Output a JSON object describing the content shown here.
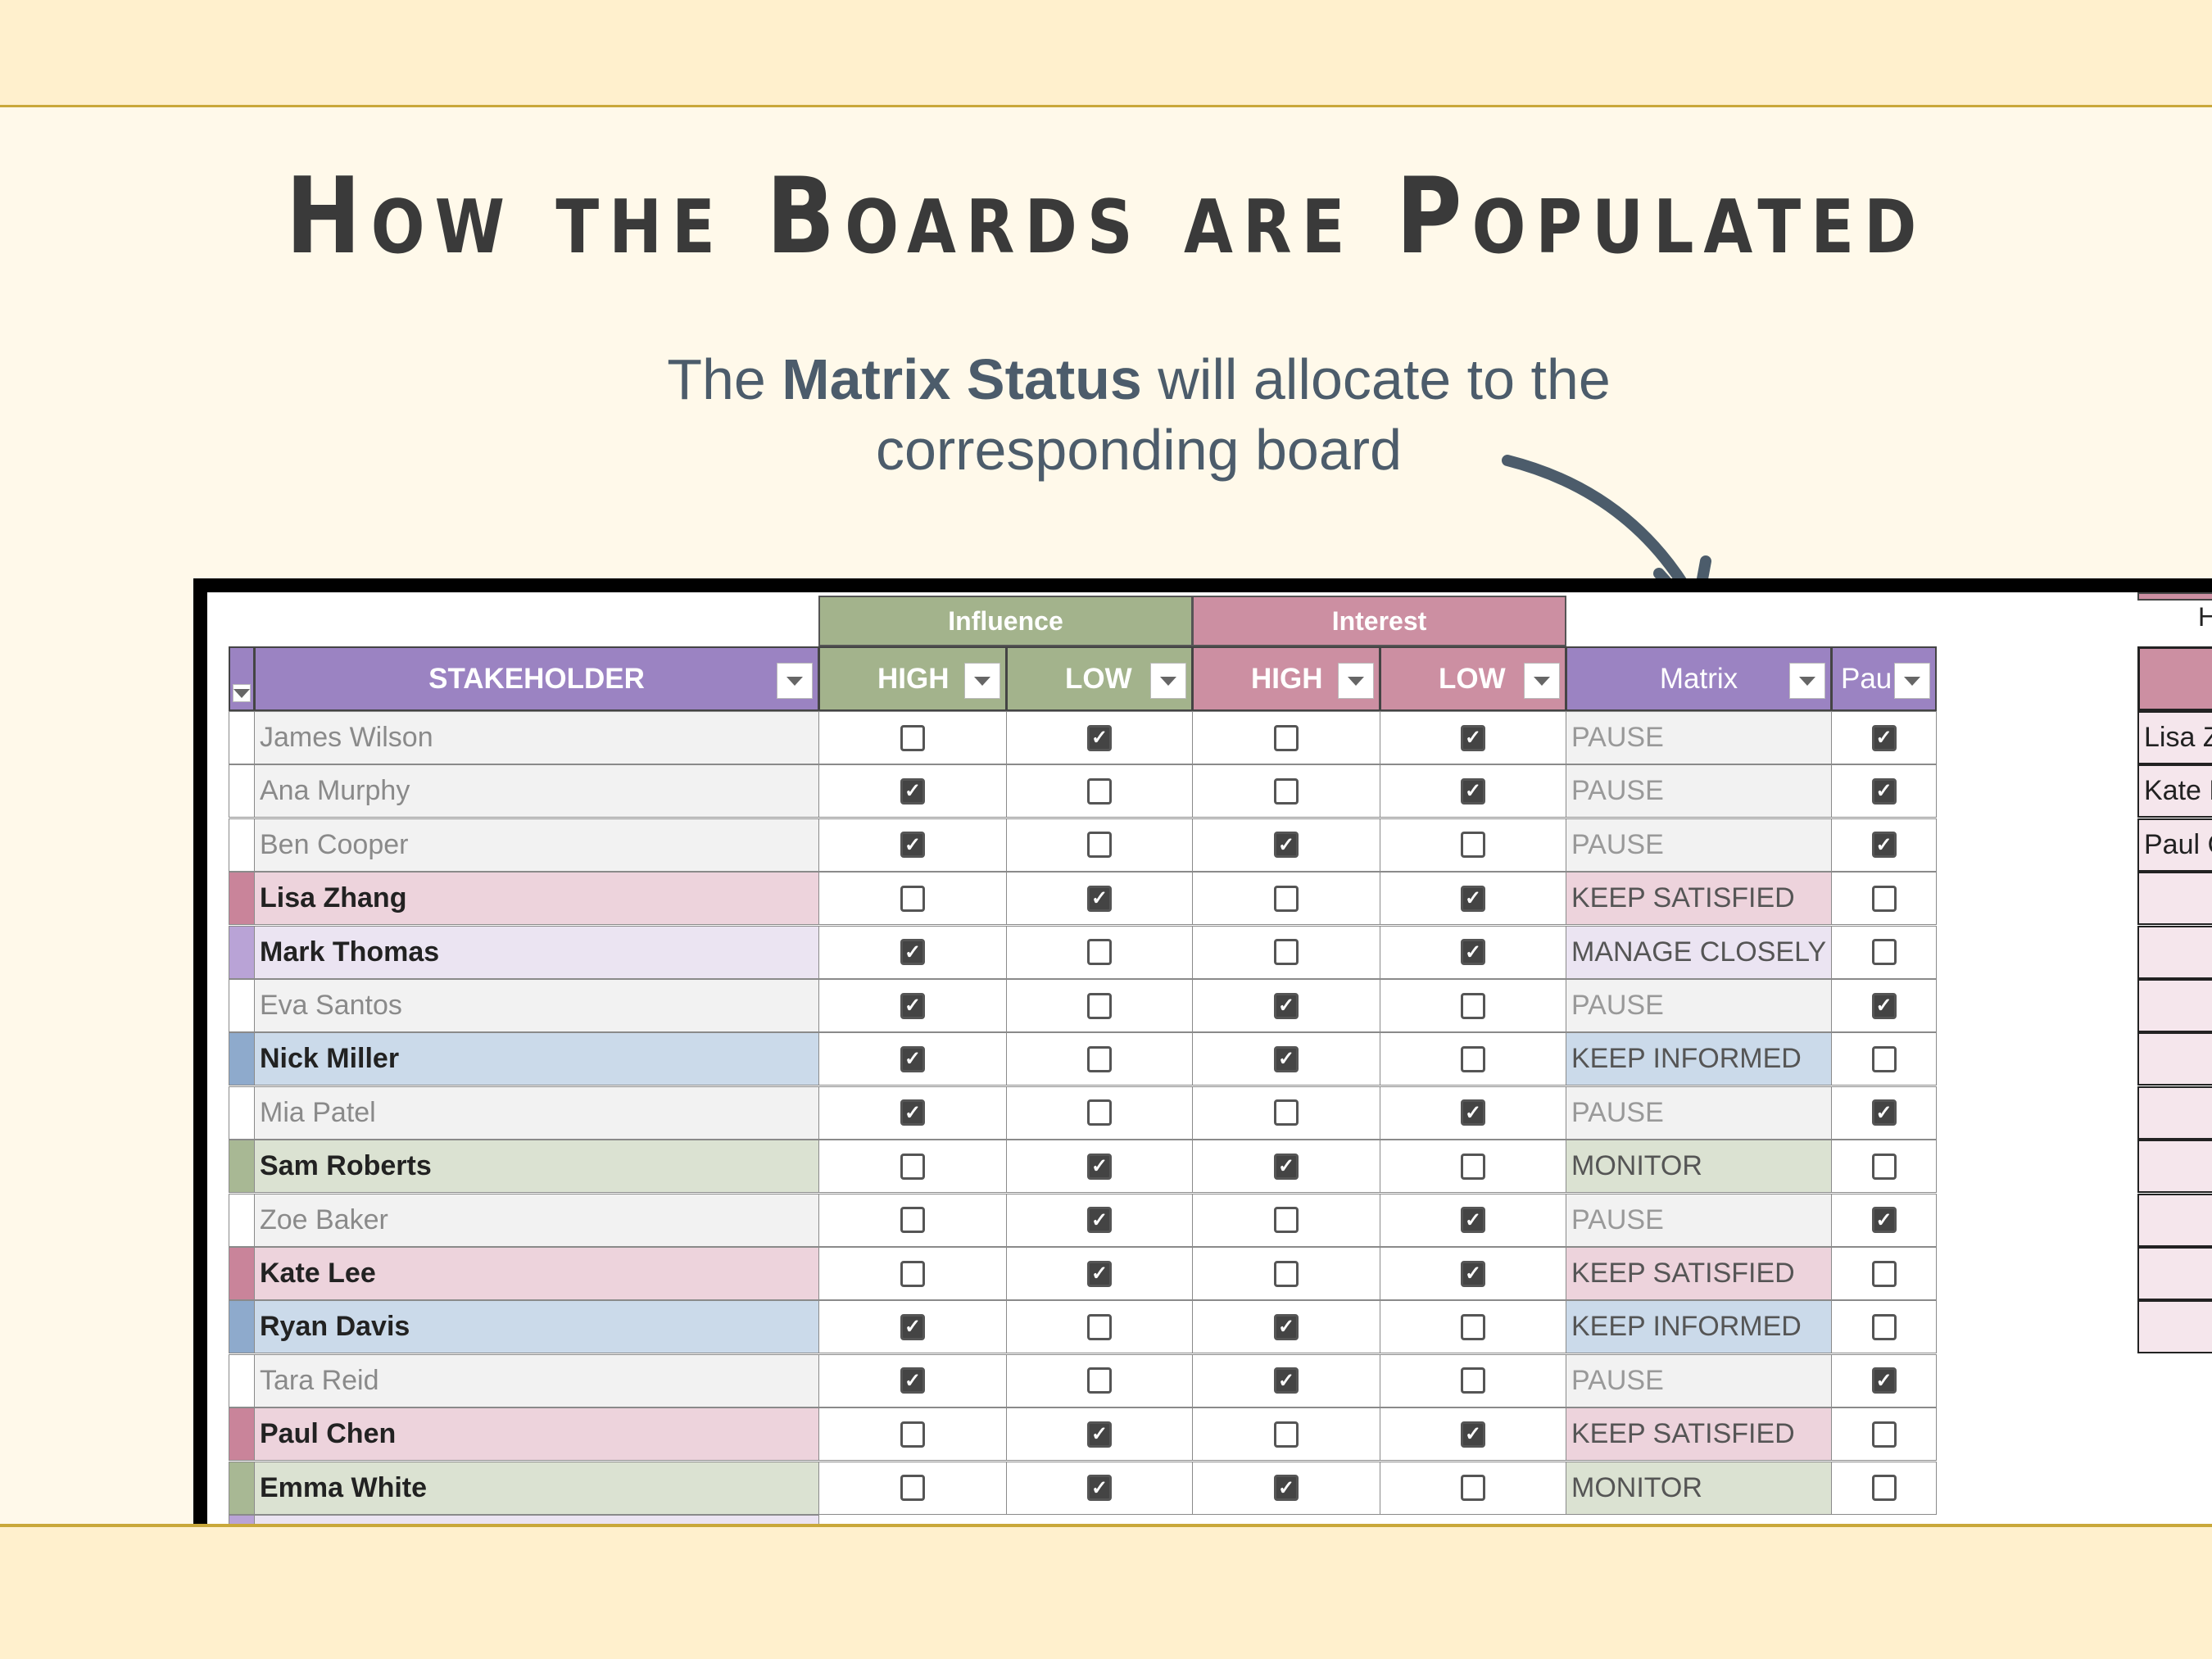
{
  "title": "How the Boards are Populated",
  "subtitle": {
    "pre": "The ",
    "bold": "Matrix Status",
    "post": " will allocate to the",
    "line2": "corresponding board"
  },
  "table": {
    "groups": {
      "influence": "Influence",
      "interest": "Interest"
    },
    "headers": {
      "stakeholder": "STAKEHOLDER",
      "inf_high": "HIGH",
      "inf_low": "LOW",
      "int_high": "HIGH",
      "int_low": "LOW",
      "matrix": "Matrix",
      "pause": "Pau"
    },
    "colors": {
      "purple": "#9b83c2",
      "green": "#a3b38c",
      "pink": "#cc8fa2"
    },
    "rows": [
      {
        "name": "James Wilson",
        "ih": false,
        "il": true,
        "nh": false,
        "nl": true,
        "matrix": "PAUSE",
        "pause": true
      },
      {
        "name": "Ana Murphy",
        "ih": true,
        "il": false,
        "nh": false,
        "nl": true,
        "matrix": "PAUSE",
        "pause": true
      },
      {
        "name": "Ben Cooper",
        "ih": true,
        "il": false,
        "nh": true,
        "nl": false,
        "matrix": "PAUSE",
        "pause": true
      },
      {
        "name": "Lisa Zhang",
        "ih": false,
        "il": true,
        "nh": false,
        "nl": true,
        "matrix": "KEEP SATISFIED",
        "pause": false
      },
      {
        "name": "Mark Thomas",
        "ih": true,
        "il": false,
        "nh": false,
        "nl": true,
        "matrix": "MANAGE CLOSELY",
        "pause": false
      },
      {
        "name": "Eva Santos",
        "ih": true,
        "il": false,
        "nh": true,
        "nl": false,
        "matrix": "PAUSE",
        "pause": true
      },
      {
        "name": "Nick Miller",
        "ih": true,
        "il": false,
        "nh": true,
        "nl": false,
        "matrix": "KEEP INFORMED",
        "pause": false
      },
      {
        "name": "Mia Patel",
        "ih": true,
        "il": false,
        "nh": false,
        "nl": true,
        "matrix": "PAUSE",
        "pause": true
      },
      {
        "name": "Sam Roberts",
        "ih": false,
        "il": true,
        "nh": true,
        "nl": false,
        "matrix": "MONITOR",
        "pause": false
      },
      {
        "name": "Zoe Baker",
        "ih": false,
        "il": true,
        "nh": false,
        "nl": true,
        "matrix": "PAUSE",
        "pause": true
      },
      {
        "name": "Kate Lee",
        "ih": false,
        "il": true,
        "nh": false,
        "nl": true,
        "matrix": "KEEP SATISFIED",
        "pause": false
      },
      {
        "name": "Ryan Davis",
        "ih": true,
        "il": false,
        "nh": true,
        "nl": false,
        "matrix": "KEEP INFORMED",
        "pause": false
      },
      {
        "name": "Tara Reid",
        "ih": true,
        "il": false,
        "nh": true,
        "nl": false,
        "matrix": "PAUSE",
        "pause": true
      },
      {
        "name": "Paul Chen",
        "ih": false,
        "il": true,
        "nh": false,
        "nl": true,
        "matrix": "KEEP SATISFIED",
        "pause": false
      },
      {
        "name": "Emma White",
        "ih": false,
        "il": true,
        "nh": true,
        "nl": false,
        "matrix": "MONITOR",
        "pause": false
      }
    ]
  },
  "board": {
    "header_partial": "H",
    "names": [
      "Lisa Z",
      "Kate L",
      "Paul C"
    ]
  }
}
